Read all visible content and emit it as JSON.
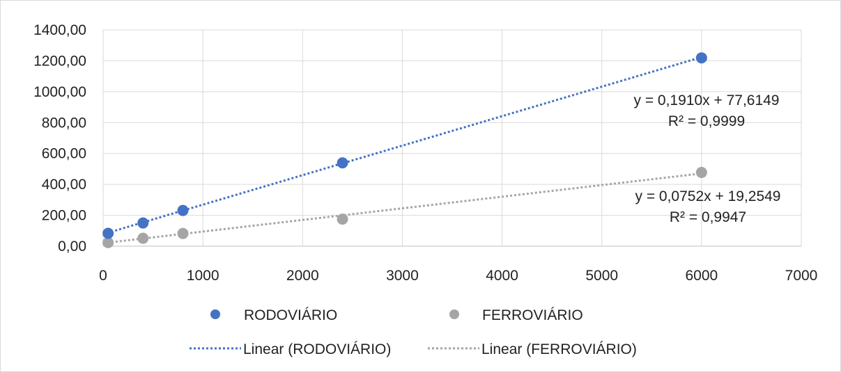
{
  "chart_data": {
    "type": "scatter",
    "title": "",
    "xlabel": "",
    "ylabel": "",
    "xlim": [
      0,
      7000
    ],
    "ylim": [
      0,
      1400
    ],
    "x_ticks": [
      "0",
      "1000",
      "2000",
      "3000",
      "4000",
      "5000",
      "6000",
      "7000"
    ],
    "y_ticks": [
      "0,00",
      "200,00",
      "400,00",
      "600,00",
      "800,00",
      "1000,00",
      "1200,00",
      "1400,00"
    ],
    "grid": true,
    "legend_position": "bottom",
    "series": [
      {
        "name": "RODOVIÁRIO",
        "color": "#4472C4",
        "points": [
          {
            "x": 50,
            "y": 83
          },
          {
            "x": 400,
            "y": 150
          },
          {
            "x": 800,
            "y": 231
          },
          {
            "x": 2400,
            "y": 539
          },
          {
            "x": 6000,
            "y": 1219
          }
        ],
        "trendline": {
          "name": "Linear (RODOVIÁRIO)",
          "slope": 0.191,
          "intercept": 77.6149,
          "x_range": [
            0,
            6000
          ],
          "equation": "y = 0,1910x + 77,6149",
          "r2": "R² = 0,9999"
        }
      },
      {
        "name": "FERROVIÁRIO",
        "color": "#A5A5A5",
        "points": [
          {
            "x": 50,
            "y": 23
          },
          {
            "x": 400,
            "y": 51
          },
          {
            "x": 800,
            "y": 82
          },
          {
            "x": 2400,
            "y": 175
          },
          {
            "x": 6000,
            "y": 477
          }
        ],
        "trendline": {
          "name": "Linear (FERROVIÁRIO)",
          "slope": 0.0752,
          "intercept": 19.2549,
          "x_range": [
            0,
            6000
          ],
          "equation": "y = 0,0752x + 19,2549",
          "r2": "R² = 0,9947"
        }
      }
    ]
  }
}
